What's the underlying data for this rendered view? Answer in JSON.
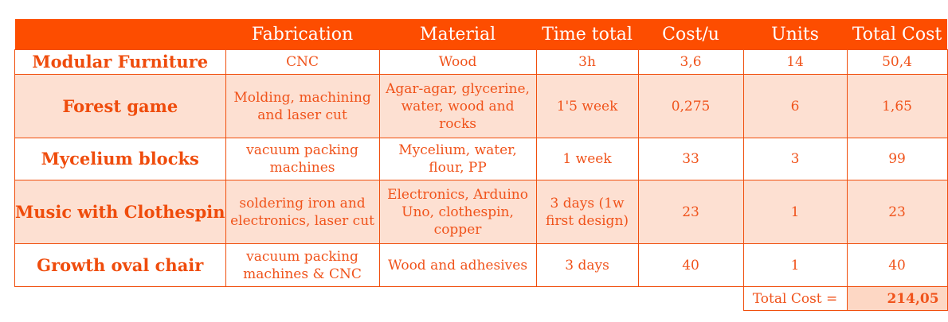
{
  "headers": [
    "",
    "Fabrication",
    "Material",
    "Time total",
    "Cost/u",
    "Units",
    "Total Cost"
  ],
  "rows": [
    {
      "name": "Modular Furniture",
      "fabrication": "CNC",
      "material": "Wood",
      "time": "3h",
      "cost_u": "3,6",
      "units": "14",
      "total": "50,4"
    },
    {
      "name": "Forest game",
      "fabrication": "Molding, machining and laser cut",
      "material": "Agar-agar, glycerine, water, wood and rocks",
      "time": "1'5 week",
      "cost_u": "0,275",
      "units": "6",
      "total": "1,65"
    },
    {
      "name": "Mycelium blocks",
      "fabrication": "vacuum packing machines",
      "material": "Mycelium, water, flour, PP",
      "time": "1 week",
      "cost_u": "33",
      "units": "3",
      "total": "99"
    },
    {
      "name": "Music with Clothespin",
      "fabrication": "soldering iron and electronics, laser cut",
      "material": "Electronics, Arduino Uno, clothespin, copper",
      "time": "3 days (1w first design)",
      "cost_u": "23",
      "units": "1",
      "total": "23"
    },
    {
      "name": "Growth oval chair",
      "fabrication": "vacuum packing machines & CNC",
      "material": "Wood and adhesives",
      "time": "3 days",
      "cost_u": "40",
      "units": "1",
      "total": "40"
    }
  ],
  "footer": {
    "label": "Total Cost =",
    "value": "214,05"
  },
  "colors": {
    "header_bg": "#fd4d00",
    "text": "#f0531b",
    "shade": "#fde0d2"
  }
}
